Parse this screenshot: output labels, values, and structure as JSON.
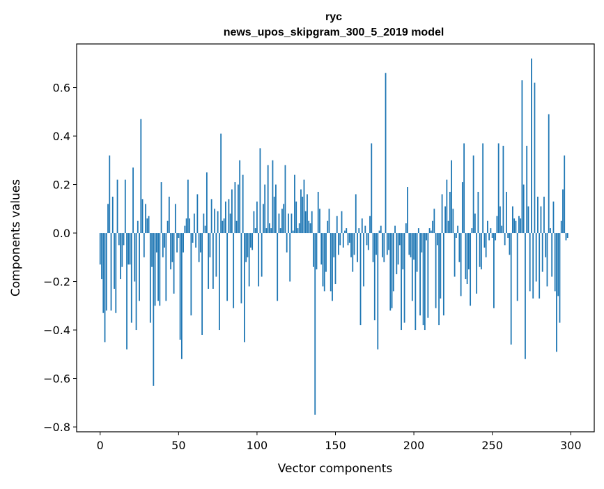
{
  "chart_data": {
    "type": "bar",
    "title": "ryc",
    "subtitle": "news_upos_skipgram_300_5_2019 model",
    "xlabel": "Vector components",
    "ylabel": "Components values",
    "xlim": [
      -15,
      315
    ],
    "ylim": [
      -0.82,
      0.78
    ],
    "xticks": [
      0,
      50,
      100,
      150,
      200,
      250,
      300
    ],
    "yticks": [
      -0.8,
      -0.6,
      -0.4,
      -0.2,
      0.0,
      0.2,
      0.4,
      0.6
    ],
    "ytick_labels": [
      "−0.8",
      "−0.6",
      "−0.4",
      "−0.2",
      "0.0",
      "0.2",
      "0.4",
      "0.6"
    ],
    "grid": false,
    "bar_color": "#1f77b4",
    "values": [
      -0.13,
      -0.19,
      -0.33,
      -0.45,
      -0.32,
      0.12,
      0.32,
      -0.32,
      0.15,
      -0.23,
      -0.33,
      0.22,
      -0.05,
      -0.19,
      -0.14,
      -0.05,
      0.22,
      -0.48,
      -0.13,
      -0.13,
      -0.37,
      0.27,
      -0.2,
      -0.4,
      0.05,
      -0.28,
      0.47,
      0.14,
      -0.1,
      0.12,
      0.06,
      0.07,
      -0.37,
      -0.14,
      -0.63,
      -0.3,
      -0.08,
      -0.28,
      -0.3,
      0.21,
      -0.1,
      -0.06,
      -0.28,
      0.05,
      0.15,
      -0.15,
      -0.12,
      -0.25,
      0.12,
      -0.08,
      -0.02,
      -0.44,
      -0.52,
      -0.08,
      0.03,
      0.06,
      0.22,
      0.06,
      -0.34,
      -0.04,
      0.08,
      -0.06,
      0.16,
      -0.12,
      -0.08,
      -0.42,
      0.08,
      0.03,
      0.25,
      -0.23,
      -0.1,
      0.14,
      -0.23,
      0.1,
      -0.18,
      0.09,
      -0.4,
      0.41,
      0.05,
      0.06,
      0.13,
      -0.28,
      0.14,
      0.08,
      0.18,
      -0.31,
      0.21,
      0.05,
      0.2,
      0.3,
      -0.29,
      0.24,
      -0.45,
      -0.12,
      -0.1,
      -0.22,
      -0.06,
      -0.07,
      0.09,
      0.02,
      0.13,
      -0.22,
      0.35,
      -0.18,
      0.12,
      0.2,
      0.02,
      0.28,
      0.04,
      0.02,
      0.3,
      0.15,
      0.2,
      -0.28,
      0.08,
      0.02,
      0.1,
      0.12,
      0.28,
      -0.08,
      0.08,
      -0.2,
      0.08,
      0.01,
      0.24,
      0.13,
      0.02,
      0.04,
      0.18,
      0.15,
      0.22,
      0.09,
      0.16,
      0.05,
      0.04,
      0.09,
      -0.14,
      -0.75,
      -0.15,
      0.17,
      0.1,
      -0.13,
      -0.22,
      -0.24,
      -0.16,
      0.05,
      0.1,
      -0.24,
      -0.28,
      -0.1,
      -0.21,
      0.07,
      -0.09,
      -0.05,
      0.09,
      -0.06,
      0.01,
      0.02,
      -0.05,
      -0.04,
      -0.1,
      -0.16,
      -0.09,
      0.16,
      -0.12,
      0.02,
      -0.38,
      0.06,
      -0.22,
      0.03,
      -0.05,
      -0.07,
      0.07,
      0.37,
      -0.12,
      -0.36,
      -0.09,
      -0.48,
      0.01,
      0.03,
      -0.1,
      -0.12,
      0.66,
      -0.09,
      -0.07,
      -0.32,
      -0.31,
      -0.24,
      0.03,
      -0.17,
      -0.13,
      -0.05,
      -0.4,
      -0.15,
      -0.37,
      0.04,
      0.19,
      -0.09,
      -0.1,
      -0.28,
      -0.11,
      -0.4,
      -0.16,
      0.02,
      -0.34,
      -0.08,
      -0.38,
      -0.4,
      -0.03,
      -0.35,
      0.02,
      0.01,
      0.05,
      0.1,
      -0.31,
      -0.05,
      -0.38,
      -0.27,
      0.16,
      -0.34,
      0.11,
      0.22,
      0.05,
      0.17,
      0.3,
      0.1,
      -0.18,
      -0.02,
      0.03,
      -0.12,
      -0.26,
      0.21,
      0.37,
      -0.19,
      -0.21,
      -0.15,
      -0.3,
      0.02,
      0.32,
      0.08,
      -0.25,
      0.17,
      -0.14,
      -0.15,
      0.37,
      -0.06,
      -0.1,
      0.05,
      -0.03,
      0.02,
      -0.02,
      -0.31,
      -0.03,
      0.07,
      0.37,
      0.11,
      0.03,
      0.36,
      -0.05,
      0.17,
      -0.02,
      -0.09,
      -0.46,
      0.11,
      0.06,
      0.05,
      -0.28,
      0.07,
      0.06,
      0.63,
      0.2,
      -0.52,
      0.36,
      0.11,
      -0.24,
      0.72,
      -0.27,
      0.62,
      -0.2,
      0.15,
      -0.27,
      0.11,
      -0.16,
      0.15,
      -0.1,
      -0.22,
      0.49,
      0.02,
      -0.18,
      0.13,
      -0.24,
      -0.49,
      -0.26,
      -0.37,
      0.05,
      0.18,
      0.32,
      -0.03,
      -0.02
    ]
  }
}
